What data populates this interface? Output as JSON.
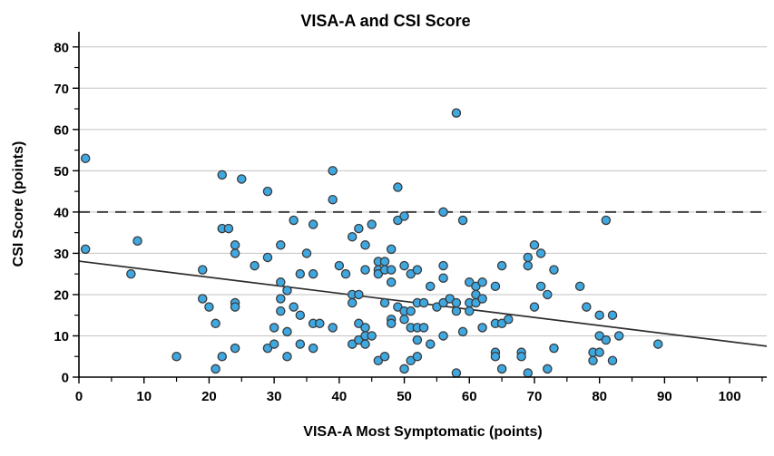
{
  "chart_data": {
    "type": "scatter",
    "title": "VISA-A and CSI Score",
    "xlabel": "VISA-A Most Symptomatic (points)",
    "ylabel": "CSI Score (points)",
    "xlim": [
      0,
      105.7
    ],
    "ylim": [
      0,
      83.7
    ],
    "xticks": [
      0,
      10,
      20,
      30,
      40,
      50,
      60,
      70,
      80,
      90,
      100
    ],
    "xticks_minor": [
      5,
      15,
      25,
      35,
      45,
      55,
      65,
      75,
      85,
      95,
      105
    ],
    "yticks": [
      0,
      10,
      20,
      30,
      40,
      50,
      60,
      70,
      80
    ],
    "yticks_minor": [
      5,
      15,
      25,
      35,
      45,
      55,
      65,
      75
    ],
    "grid": "horizontal",
    "legend": "none",
    "marker_color": "#3FA8E1",
    "marker_stroke": "#3a3a3a",
    "grid_color": "#c3c3c3",
    "axis_color": "#000000",
    "reference_line": {
      "y": 40,
      "style": "dashed",
      "color": "#3f3f3f"
    },
    "trend_line": {
      "x1": 0,
      "y1": 28.1,
      "x2": 105.7,
      "y2": 7.5,
      "color": "#2e2e2e"
    },
    "points": [
      [
        1,
        53
      ],
      [
        1,
        31
      ],
      [
        8,
        25
      ],
      [
        9,
        33
      ],
      [
        15,
        5
      ],
      [
        19,
        26
      ],
      [
        19,
        19
      ],
      [
        20,
        17
      ],
      [
        21,
        13
      ],
      [
        21,
        2
      ],
      [
        22,
        5
      ],
      [
        22,
        36
      ],
      [
        22,
        49
      ],
      [
        23,
        36
      ],
      [
        24,
        32
      ],
      [
        24,
        30
      ],
      [
        24,
        18
      ],
      [
        24,
        17
      ],
      [
        24,
        7
      ],
      [
        25,
        48
      ],
      [
        27,
        27
      ],
      [
        29,
        45
      ],
      [
        29,
        29
      ],
      [
        29,
        7
      ],
      [
        30,
        12
      ],
      [
        30,
        8
      ],
      [
        31,
        32
      ],
      [
        31,
        23
      ],
      [
        31,
        19
      ],
      [
        31,
        16
      ],
      [
        32,
        21
      ],
      [
        32,
        11
      ],
      [
        32,
        5
      ],
      [
        33,
        38
      ],
      [
        33,
        17
      ],
      [
        34,
        25
      ],
      [
        34,
        15
      ],
      [
        34,
        8
      ],
      [
        35,
        30
      ],
      [
        36,
        37
      ],
      [
        36,
        25
      ],
      [
        36,
        13
      ],
      [
        36,
        7
      ],
      [
        37,
        13
      ],
      [
        39,
        50
      ],
      [
        39,
        43
      ],
      [
        39,
        12
      ],
      [
        40,
        27
      ],
      [
        41,
        25
      ],
      [
        42,
        34
      ],
      [
        42,
        20
      ],
      [
        42,
        18
      ],
      [
        42,
        8
      ],
      [
        43,
        36
      ],
      [
        43,
        20
      ],
      [
        43,
        13
      ],
      [
        43,
        9
      ],
      [
        44,
        32
      ],
      [
        44,
        26
      ],
      [
        44,
        12
      ],
      [
        44,
        10
      ],
      [
        44,
        8
      ],
      [
        45,
        37
      ],
      [
        45,
        10
      ],
      [
        46,
        28
      ],
      [
        46,
        26
      ],
      [
        46,
        25
      ],
      [
        46,
        4
      ],
      [
        47,
        28
      ],
      [
        47,
        26
      ],
      [
        47,
        18
      ],
      [
        47,
        5
      ],
      [
        48,
        31
      ],
      [
        48,
        26
      ],
      [
        48,
        23
      ],
      [
        48,
        14
      ],
      [
        48,
        13
      ],
      [
        49,
        46
      ],
      [
        49,
        38
      ],
      [
        49,
        17
      ],
      [
        50,
        39
      ],
      [
        50,
        27
      ],
      [
        50,
        16
      ],
      [
        50,
        14
      ],
      [
        50,
        2
      ],
      [
        51,
        25
      ],
      [
        51,
        16
      ],
      [
        51,
        12
      ],
      [
        51,
        4
      ],
      [
        52,
        26
      ],
      [
        52,
        18
      ],
      [
        52,
        12
      ],
      [
        52,
        9
      ],
      [
        52,
        5
      ],
      [
        53,
        18
      ],
      [
        53,
        12
      ],
      [
        54,
        22
      ],
      [
        54,
        8
      ],
      [
        55,
        17
      ],
      [
        56,
        40
      ],
      [
        56,
        27
      ],
      [
        56,
        24
      ],
      [
        56,
        18
      ],
      [
        56,
        10
      ],
      [
        57,
        19
      ],
      [
        58,
        64
      ],
      [
        58,
        18
      ],
      [
        58,
        16
      ],
      [
        58,
        1
      ],
      [
        59,
        38
      ],
      [
        59,
        11
      ],
      [
        60,
        23
      ],
      [
        60,
        18
      ],
      [
        60,
        16
      ],
      [
        61,
        22
      ],
      [
        61,
        20
      ],
      [
        61,
        18
      ],
      [
        62,
        23
      ],
      [
        62,
        19
      ],
      [
        62,
        12
      ],
      [
        64,
        22
      ],
      [
        64,
        13
      ],
      [
        64,
        6
      ],
      [
        64,
        5
      ],
      [
        65,
        27
      ],
      [
        65,
        13
      ],
      [
        65,
        2
      ],
      [
        66,
        14
      ],
      [
        68,
        6
      ],
      [
        68,
        5
      ],
      [
        69,
        29
      ],
      [
        69,
        27
      ],
      [
        69,
        1
      ],
      [
        70,
        32
      ],
      [
        70,
        17
      ],
      [
        71,
        30
      ],
      [
        71,
        22
      ],
      [
        72,
        20
      ],
      [
        72,
        2
      ],
      [
        73,
        26
      ],
      [
        73,
        7
      ],
      [
        77,
        22
      ],
      [
        78,
        17
      ],
      [
        79,
        6
      ],
      [
        79,
        4
      ],
      [
        80,
        15
      ],
      [
        80,
        10
      ],
      [
        80,
        6
      ],
      [
        81,
        38
      ],
      [
        81,
        9
      ],
      [
        82,
        15
      ],
      [
        82,
        4
      ],
      [
        83,
        10
      ],
      [
        89,
        8
      ]
    ]
  }
}
